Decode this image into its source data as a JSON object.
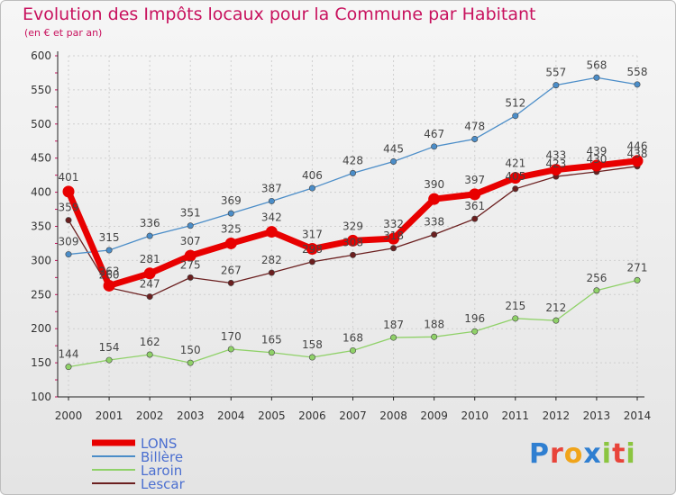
{
  "title": "Evolution des Impôts locaux pour la Commune par Habitant",
  "subtitle": "(en € et par an)",
  "logo": {
    "text": "Proxiti",
    "colors": [
      "#2f7fd1",
      "#e8443a",
      "#f0a41a",
      "#2f7fd1",
      "#8bc540",
      "#e8443a",
      "#8bc540"
    ]
  },
  "chart_data": {
    "type": "line",
    "x": [
      "2000",
      "2001",
      "2002",
      "2003",
      "2004",
      "2005",
      "2006",
      "2007",
      "2008",
      "2009",
      "2010",
      "2011",
      "2012",
      "2013",
      "2014"
    ],
    "ylim": [
      100,
      600
    ],
    "yticks": [
      100,
      150,
      200,
      250,
      300,
      350,
      400,
      450,
      500,
      550,
      600
    ],
    "grid": true,
    "legend_position": "bottom-left",
    "series": [
      {
        "name": "LONS",
        "color": "#e80000",
        "values": [
          401,
          263,
          281,
          307,
          325,
          342,
          317,
          329,
          332,
          390,
          397,
          421,
          433,
          439,
          446
        ]
      },
      {
        "name": "Billère",
        "color": "#4b8dc8",
        "values": [
          309,
          315,
          336,
          351,
          369,
          387,
          406,
          428,
          445,
          467,
          478,
          512,
          557,
          568,
          558
        ]
      },
      {
        "name": "Laroin",
        "color": "#8fd168",
        "values": [
          144,
          154,
          162,
          150,
          170,
          165,
          158,
          168,
          187,
          188,
          196,
          215,
          212,
          256,
          271
        ]
      },
      {
        "name": "Lescar",
        "color": "#6b1f1f",
        "values": [
          359,
          260,
          247,
          275,
          267,
          282,
          298,
          308,
          318,
          338,
          361,
          405,
          423,
          430,
          438
        ]
      }
    ]
  }
}
